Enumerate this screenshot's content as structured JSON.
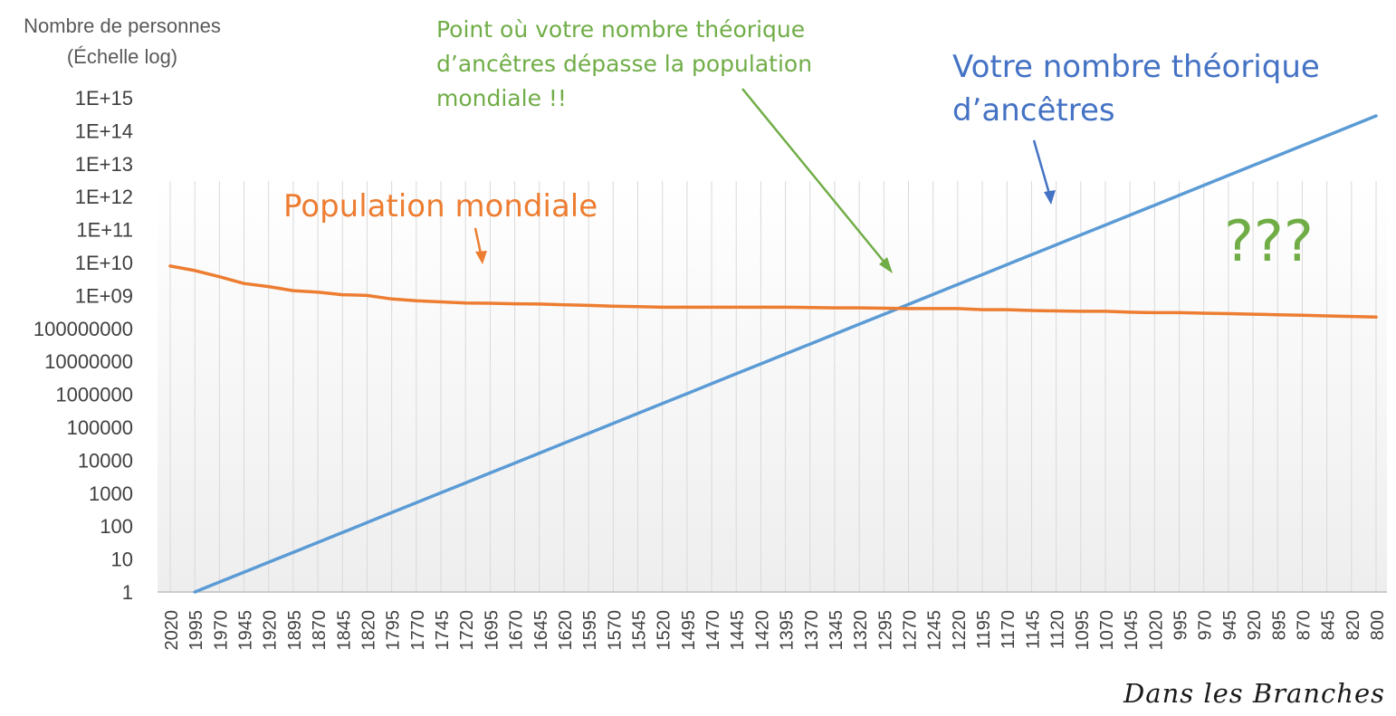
{
  "annotations": {
    "green": [
      "Point où votre nombre théorique",
      "d’ancêtres dépasse la population",
      "mondiale !!"
    ],
    "blue": [
      "Votre nombre théorique",
      "d’ancêtres"
    ],
    "orange": "Population mondiale",
    "question": "???"
  },
  "signature": "Dans les Branches",
  "colors": {
    "ancestors": "#5b9bd5",
    "population": "#ed7d31",
    "green": "#70ad47",
    "blue": "#4472c4",
    "axis_text": "#595959",
    "grid": "#d9d9d9"
  },
  "chart_data": {
    "type": "line",
    "ylabel": [
      "Nombre de personnes",
      "(Échelle log)"
    ],
    "yscale": "log",
    "ylim": [
      1,
      1000000000000000
    ],
    "yticks": [
      "1",
      "10",
      "100",
      "1000",
      "10000",
      "100000",
      "1000000",
      "10000000",
      "100000000",
      "1E+09",
      "1E+10",
      "1E+11",
      "1E+12",
      "1E+13",
      "1E+14",
      "1E+15"
    ],
    "grid": "vertical",
    "categories": [
      "2020",
      "1995",
      "1970",
      "1945",
      "1920",
      "1895",
      "1870",
      "1845",
      "1820",
      "1795",
      "1770",
      "1745",
      "1720",
      "1695",
      "1670",
      "1645",
      "1620",
      "1595",
      "1570",
      "1545",
      "1520",
      "1495",
      "1470",
      "1445",
      "1420",
      "1395",
      "1370",
      "1345",
      "1320",
      "1295",
      "1270",
      "1245",
      "1220",
      "1195",
      "1170",
      "1145",
      "1120",
      "1095",
      "1070",
      "1045",
      "1020",
      "995",
      "970",
      "945",
      "920",
      "895",
      "870",
      "845",
      "820",
      "800"
    ],
    "series": [
      {
        "name": "Votre nombre théorique d’ancêtres",
        "values": [
          null,
          1,
          2,
          4,
          8,
          16,
          32,
          64,
          128,
          256,
          512,
          1024,
          2048,
          4096,
          8192,
          16384,
          32768,
          65536,
          131072,
          262144,
          524288,
          1048576,
          2097152,
          4194304,
          8388608,
          16777216,
          33554432,
          67108864,
          134217728,
          268435456,
          536870912,
          1073741824,
          2147483648,
          4294967296,
          8589934592,
          17179869184,
          34359738368,
          68719476736,
          137438953472,
          274877906944,
          549755813888,
          1099511627776,
          2199023255552,
          4398046511104,
          8796093022208,
          17592186044416,
          35184372088832,
          70368744177664,
          140737488355328,
          281474976710656
        ]
      },
      {
        "name": "Population mondiale",
        "values": [
          7800000000,
          5700000000,
          3700000000,
          2300000000,
          1860000000,
          1400000000,
          1260000000,
          1050000000,
          1000000000,
          780000000,
          690000000,
          640000000,
          590000000,
          580000000,
          560000000,
          550000000,
          520000000,
          500000000,
          470000000,
          460000000,
          440000000,
          440000000,
          440000000,
          440000000,
          440000000,
          440000000,
          430000000,
          420000000,
          420000000,
          410000000,
          400000000,
          400000000,
          400000000,
          370000000,
          370000000,
          350000000,
          340000000,
          330000000,
          330000000,
          310000000,
          300000000,
          300000000,
          290000000,
          280000000,
          270000000,
          260000000,
          250000000,
          240000000,
          230000000,
          220000000
        ]
      }
    ]
  }
}
